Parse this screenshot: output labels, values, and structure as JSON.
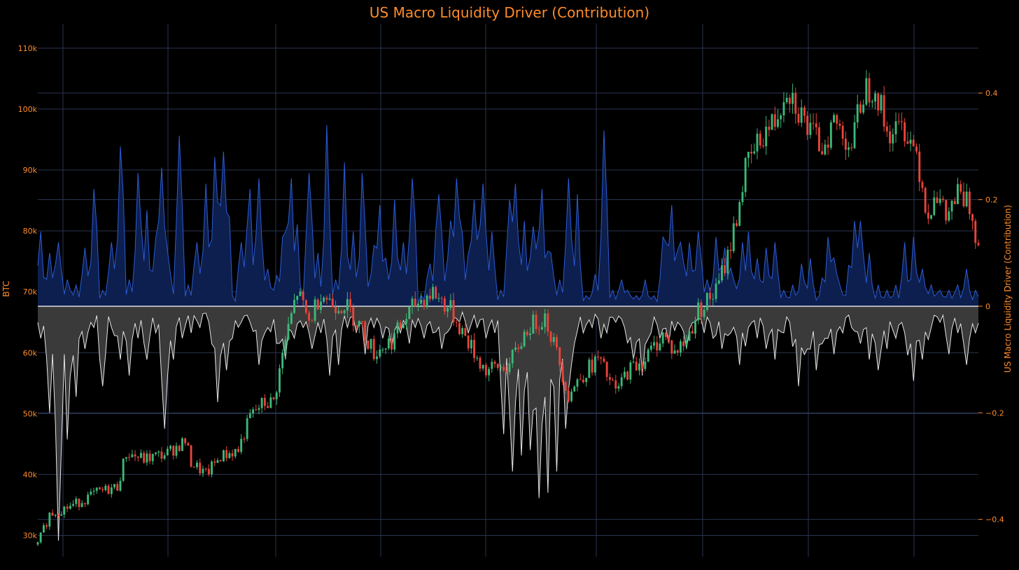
{
  "colors": {
    "background": "#000000",
    "accent": "#ff8c2a",
    "grid": "#2a3550",
    "up": "#3cb878",
    "down": "#e8443a",
    "pos_line": "#2b5bd6",
    "pos_fill": "#0d1f4e",
    "neg_line": "#e6e6e6",
    "neg_fill": "#3a3a3a"
  },
  "chart_data": {
    "type": "line",
    "title": "US Macro Liquidity Driver (Contribution)",
    "grid": true,
    "left_axis": {
      "label": "BTC",
      "range": [
        26500,
        114000
      ],
      "ticks": [
        30000,
        40000,
        50000,
        60000,
        70000,
        80000,
        90000,
        100000,
        110000
      ],
      "tick_labels": [
        "30k",
        "40k",
        "50k",
        "60k",
        "70k",
        "80k",
        "90k",
        "100k",
        "110k"
      ]
    },
    "right_axis": {
      "label": "US Macro Liquidity Driver (Contribution)",
      "range": [
        -0.47,
        0.53
      ],
      "ticks": [
        -0.4,
        -0.2,
        0,
        0.2,
        0.4
      ],
      "tick_labels": [
        "−0.4",
        "−0.2",
        "0",
        "0.2",
        "0.4"
      ]
    },
    "x_count": 320,
    "candle_series": {
      "name": "BTC",
      "close_anchors": [
        [
          0,
          28500
        ],
        [
          4,
          33500
        ],
        [
          12,
          35000
        ],
        [
          20,
          37000
        ],
        [
          27,
          38000
        ],
        [
          30,
          43500
        ],
        [
          36,
          42500
        ],
        [
          44,
          43500
        ],
        [
          50,
          45500
        ],
        [
          52,
          42000
        ],
        [
          57,
          40000
        ],
        [
          62,
          43000
        ],
        [
          68,
          44000
        ],
        [
          72,
          49500
        ],
        [
          76,
          51500
        ],
        [
          80,
          52000
        ],
        [
          84,
          62000
        ],
        [
          88,
          70000
        ],
        [
          92,
          65000
        ],
        [
          96,
          70000
        ],
        [
          100,
          68000
        ],
        [
          104,
          68000
        ],
        [
          110,
          64000
        ],
        [
          114,
          60000
        ],
        [
          120,
          62000
        ],
        [
          128,
          68000
        ],
        [
          134,
          70000
        ],
        [
          140,
          67000
        ],
        [
          148,
          60000
        ],
        [
          152,
          57000
        ],
        [
          160,
          58000
        ],
        [
          166,
          64000
        ],
        [
          172,
          66000
        ],
        [
          176,
          60000
        ],
        [
          180,
          53000
        ],
        [
          184,
          56000
        ],
        [
          190,
          59000
        ],
        [
          196,
          53500
        ],
        [
          200,
          57000
        ],
        [
          206,
          59000
        ],
        [
          212,
          63000
        ],
        [
          216,
          60000
        ],
        [
          220,
          62000
        ],
        [
          224,
          67000
        ],
        [
          230,
          70000
        ],
        [
          234,
          76000
        ],
        [
          236,
          80000
        ],
        [
          240,
          90000
        ],
        [
          246,
          96000
        ],
        [
          250,
          98000
        ],
        [
          254,
          104000
        ],
        [
          258,
          100000
        ],
        [
          262,
          96000
        ],
        [
          266,
          94000
        ],
        [
          270,
          98000
        ],
        [
          276,
          94000
        ],
        [
          280,
          103000
        ],
        [
          284,
          104000
        ],
        [
          288,
          96000
        ],
        [
          294,
          97000
        ],
        [
          298,
          93000
        ],
        [
          302,
          82000
        ],
        [
          304,
          87000
        ],
        [
          308,
          82000
        ],
        [
          312,
          86000
        ],
        [
          316,
          84000
        ],
        [
          319,
          78000
        ]
      ]
    },
    "area_series": {
      "name": "US Macro Liquidity Driver (Contribution)",
      "positive_peaks": [
        [
          0.14,
          0.1,
          0.12,
          0.05,
          0.04,
          0.11,
          0.22,
          0.03,
          0.12,
          0.3,
          0.05,
          0.25,
          0.18,
          0.1,
          0.26,
          0.06,
          0.32,
          0.04,
          0.12
        ],
        [
          0.23,
          0.28,
          0.29,
          0.02,
          0.12,
          0.22,
          0.24,
          0.07,
          0.03,
          0.13,
          0.24,
          0.04,
          0.25,
          0.1,
          0.34,
          0.05,
          0.27,
          0.14
        ],
        [
          0.25,
          0.06,
          0.19,
          0.05,
          0.2,
          0.12,
          0.24,
          0.02,
          0.08,
          0.21,
          0.09,
          0.24,
          0.05,
          0.2,
          0.23,
          0.14,
          0.03,
          0.2
        ],
        [
          0.23,
          0.16,
          0.15,
          0.22,
          0.1,
          0.05,
          0.24,
          0.21,
          0.02,
          0.06,
          0.33,
          0.03,
          0.05,
          0.03,
          0.02,
          0.05,
          0.02,
          0.13
        ],
        [
          0.19,
          0.12,
          0.12,
          0.14,
          0.05,
          0.13,
          0.11,
          0.05,
          0.12,
          0.14,
          0.09,
          0.11,
          0.12,
          0.03,
          0.04,
          0.08,
          0.09,
          0.02
        ],
        [
          0.13,
          0.06,
          0.02,
          0.16,
          0.16,
          0.1,
          0.04,
          0.03,
          0.04,
          0.12,
          0.13,
          0.07,
          0.04,
          0.03,
          0.03,
          0.04,
          0.07,
          0.03
        ]
      ],
      "negative_troughs": [
        [
          -0.06,
          -0.2,
          -0.44,
          -0.25,
          -0.17,
          -0.08,
          -0.04,
          -0.15,
          -0.04,
          -0.1,
          -0.13,
          -0.06,
          -0.1,
          -0.05,
          -0.23,
          -0.1,
          -0.06,
          -0.05
        ],
        [
          -0.04,
          -0.03,
          -0.18,
          -0.12,
          -0.06,
          -0.03,
          -0.03,
          -0.11,
          -0.04,
          -0.07,
          -0.1,
          -0.06,
          -0.04,
          -0.08,
          -0.05,
          -0.13,
          -0.11,
          -0.04
        ],
        [
          -0.05,
          -0.09,
          -0.04,
          -0.06,
          -0.08,
          -0.05,
          -0.07,
          -0.04,
          -0.06,
          -0.05,
          -0.08,
          -0.04,
          -0.03,
          -0.05,
          -0.04,
          -0.06,
          -0.05,
          -0.24
        ],
        [
          -0.31,
          -0.28,
          -0.27,
          -0.36,
          -0.35,
          -0.31,
          -0.23,
          -0.07,
          -0.05,
          -0.04,
          -0.06,
          -0.05,
          -0.03,
          -0.04,
          -0.1,
          -0.13,
          -0.05,
          -0.06
        ],
        [
          -0.07,
          -0.03,
          -0.08,
          -0.03,
          -0.05,
          -0.06,
          -0.08,
          -0.05,
          -0.11,
          -0.04,
          -0.06,
          -0.08,
          -0.1,
          -0.05,
          -0.03,
          -0.15,
          -0.08,
          -0.12
        ],
        [
          -0.06,
          -0.09,
          -0.05,
          -0.04,
          -0.07,
          -0.1,
          -0.12,
          -0.08,
          -0.06,
          -0.05,
          -0.14,
          -0.1,
          -0.04,
          -0.03,
          -0.09,
          -0.05,
          -0.11,
          -0.05
        ]
      ]
    }
  }
}
